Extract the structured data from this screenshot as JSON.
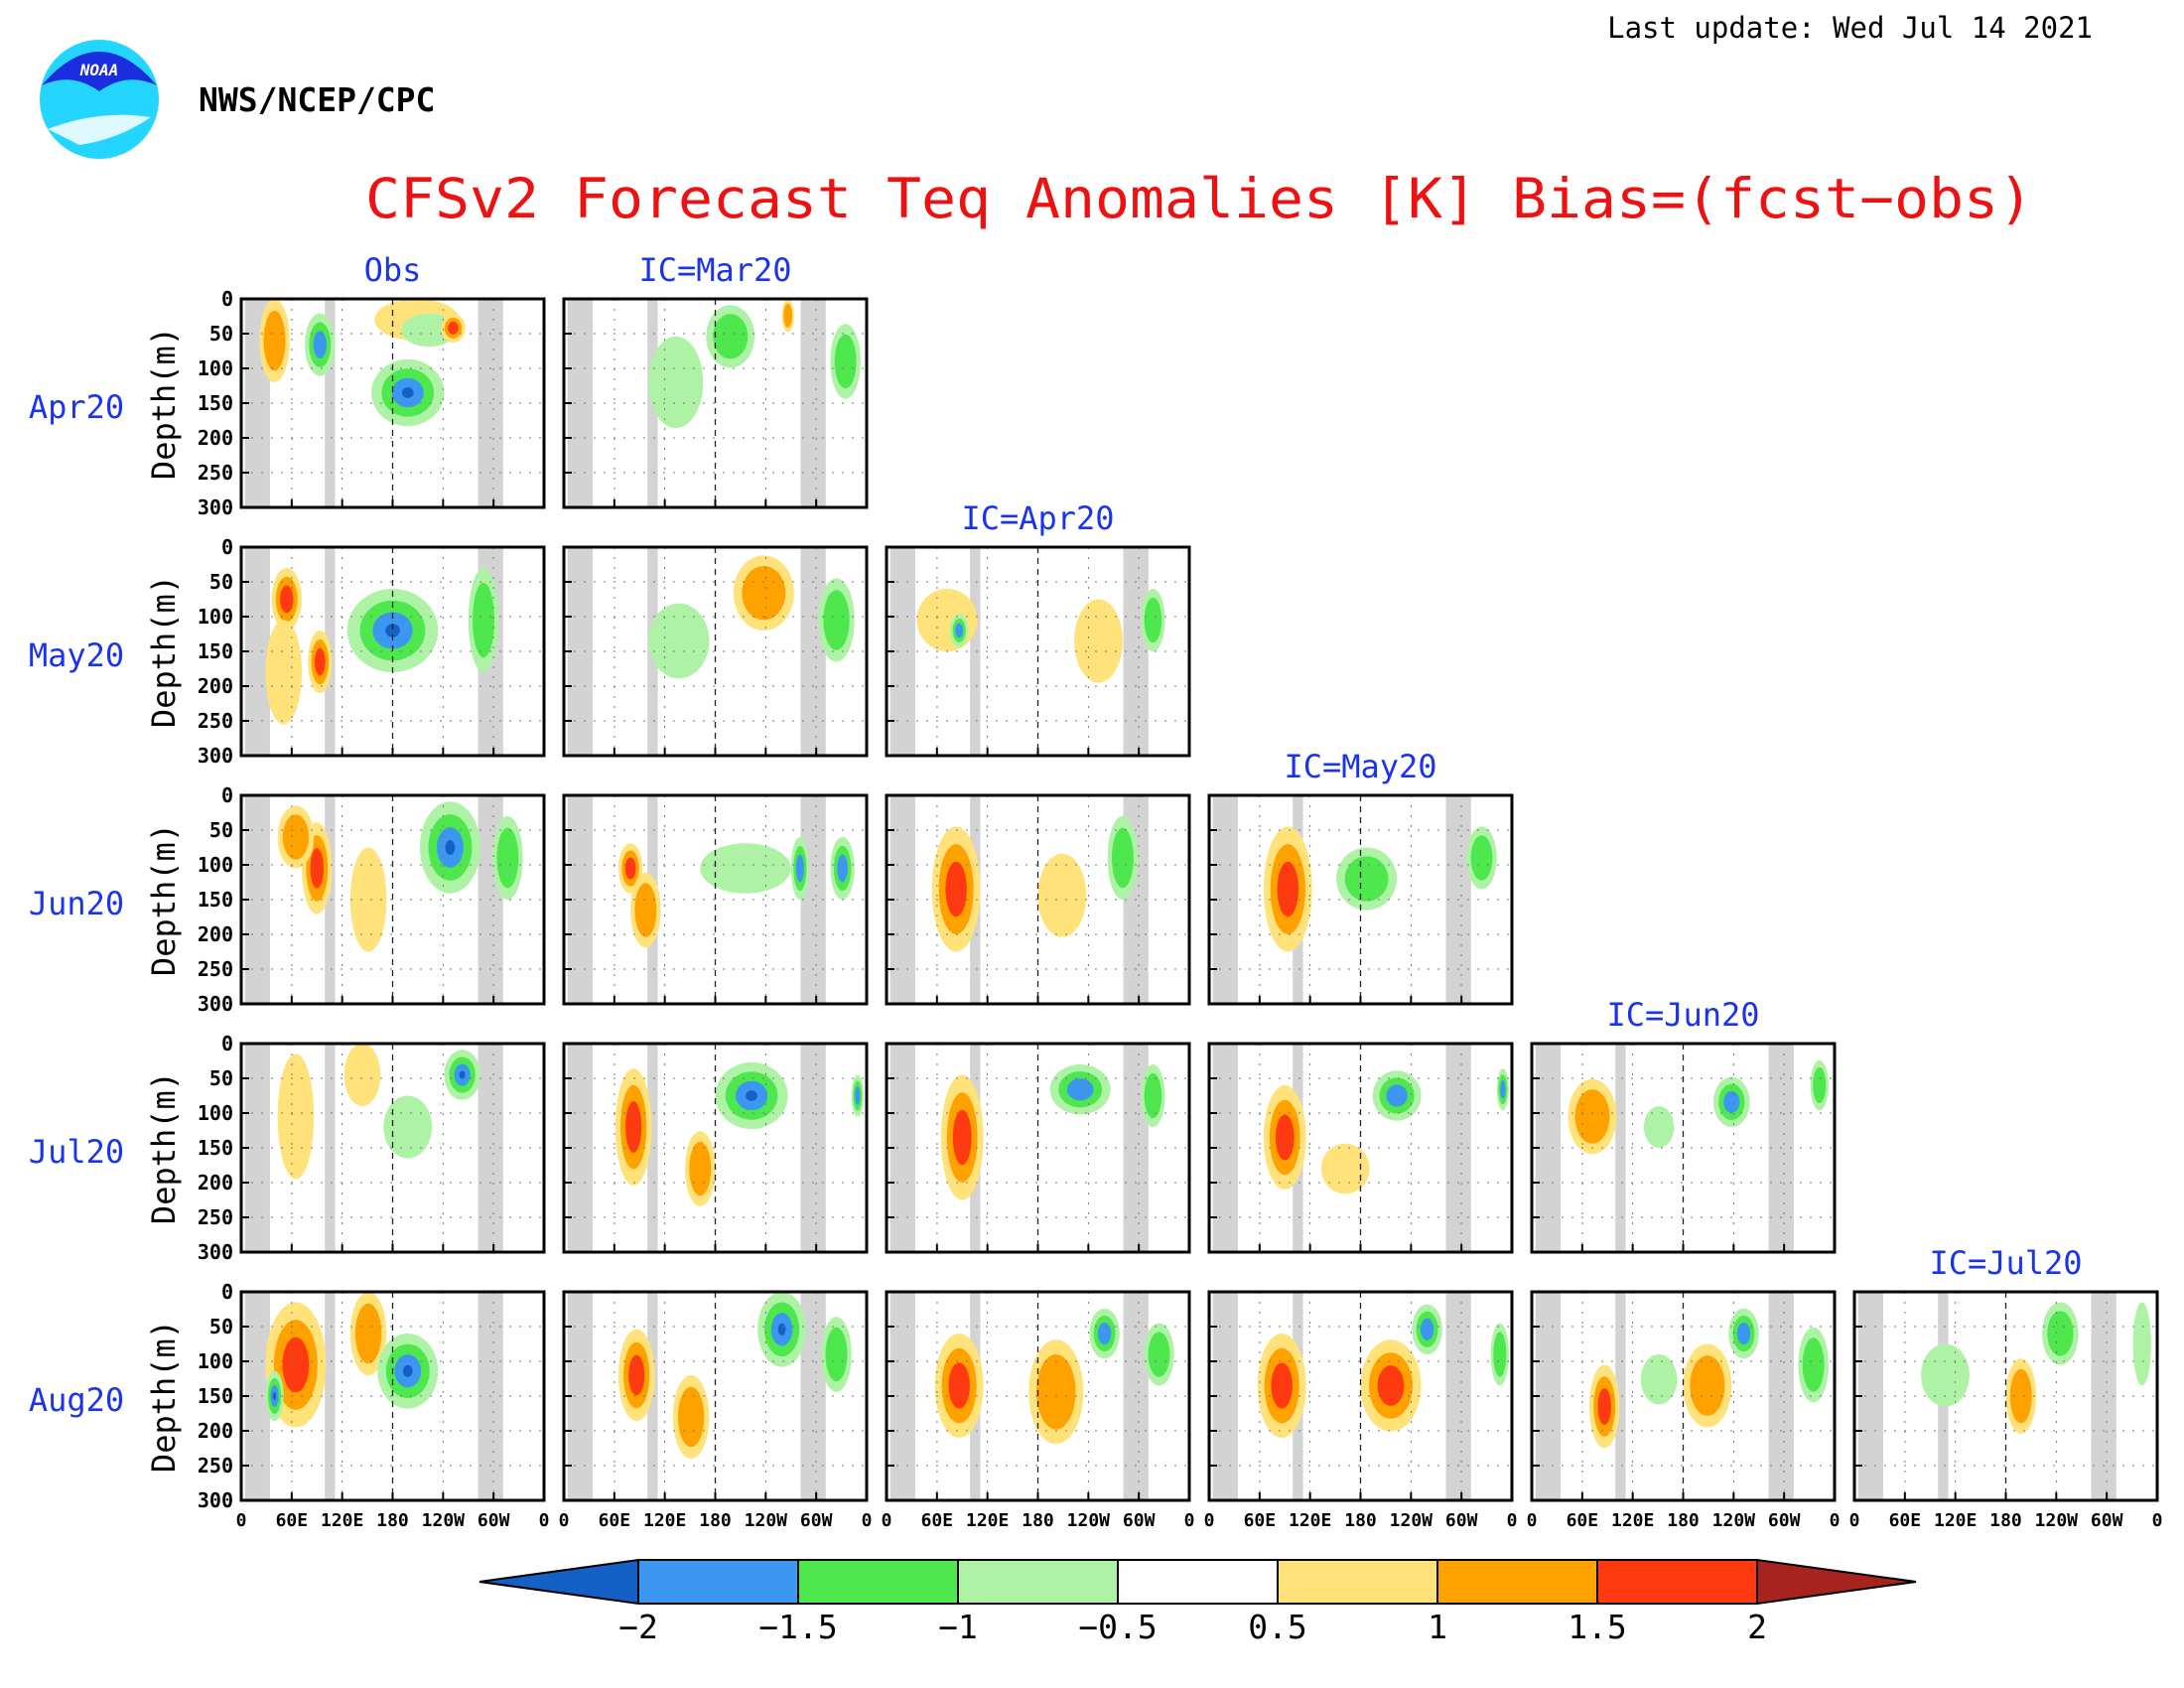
{
  "header": {
    "last_update": "Last update: Wed Jul 14 2021",
    "agency": "NWS/NCEP/CPC",
    "logo_text": "NOAA",
    "title": "CFSv2 Forecast Teq Anomalies [K] Bias=(fcst−obs)"
  },
  "colors": {
    "title": "#ee1111",
    "labels": "#1a33ee",
    "land_mask": "#d3d3d3",
    "frame": "#000000"
  },
  "chart_data": {
    "type": "heatmap",
    "ylabel": "Depth(m)",
    "y_ticks": [
      "0",
      "50",
      "100",
      "150",
      "200",
      "250",
      "300"
    ],
    "x_ticks": [
      "0",
      "60E",
      "120E",
      "180",
      "120W",
      "60W",
      "0"
    ],
    "ylim": [
      300,
      0
    ],
    "rows": [
      "Apr20",
      "May20",
      "Jun20",
      "Jul20",
      "Aug20"
    ],
    "columns": [
      "Obs",
      "IC=Mar20",
      "IC=Apr20",
      "IC=May20",
      "IC=Jun20",
      "IC=Jul20"
    ],
    "colorbar": {
      "labels": [
        "−2",
        "−1.5",
        "−1",
        "−0.5",
        "0.5",
        "1",
        "1.5",
        "2"
      ],
      "colors": [
        "#1560c4",
        "#3b97f0",
        "#4ee84e",
        "#aef2a6",
        "#ffffff",
        "#ffe27a",
        "#ffa200",
        "#ff3a10",
        "#a6231e"
      ]
    }
  }
}
